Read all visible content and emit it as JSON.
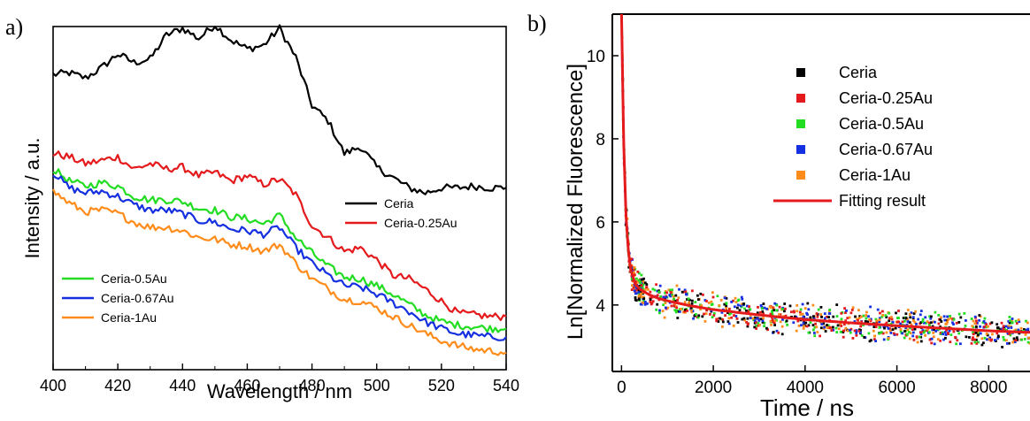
{
  "figure": {
    "panel_a_letter": "a)",
    "panel_b_letter": "b)"
  },
  "chart_data": [
    {
      "panel": "a)",
      "type": "line",
      "xlabel": "Wavelength / nm",
      "ylabel": "Intensity / a.u.",
      "xlim": [
        400,
        540
      ],
      "ylim": [
        0,
        10
      ],
      "x_ticks": [
        400,
        420,
        440,
        460,
        480,
        500,
        520,
        540
      ],
      "y_tick_labels": "none",
      "grid": false,
      "legend_groups": [
        {
          "location": "middle-right",
          "entries": [
            "Ceria",
            "Ceria-0.25Au"
          ]
        },
        {
          "location": "bottom-left",
          "entries": [
            "Ceria-0.5Au",
            "Ceria-0.67Au",
            "Ceria-1Au"
          ]
        }
      ],
      "x": [
        400,
        405,
        410,
        415,
        420,
        425,
        430,
        435,
        440,
        445,
        450,
        455,
        460,
        465,
        470,
        475,
        480,
        485,
        490,
        495,
        500,
        505,
        510,
        515,
        520,
        525,
        530,
        535,
        540
      ],
      "series": [
        {
          "name": "Ceria",
          "color": "#000000",
          "values": [
            8.6,
            8.65,
            8.5,
            8.8,
            9.2,
            8.95,
            9.05,
            9.75,
            9.95,
            9.65,
            10.05,
            9.6,
            9.35,
            9.45,
            9.95,
            9.1,
            7.7,
            7.25,
            6.3,
            6.5,
            5.9,
            5.6,
            5.3,
            5.15,
            5.3,
            5.3,
            5.35,
            5.3,
            5.3
          ]
        },
        {
          "name": "Ceria-0.25Au",
          "color": "#e41a1c",
          "values": [
            6.3,
            6.2,
            6.0,
            6.1,
            6.2,
            5.85,
            6.0,
            5.85,
            5.9,
            5.65,
            5.75,
            5.5,
            5.65,
            5.4,
            5.55,
            5.1,
            4.2,
            3.85,
            3.45,
            3.55,
            3.2,
            2.75,
            2.65,
            2.35,
            2.0,
            1.65,
            1.6,
            1.55,
            1.55
          ]
        },
        {
          "name": "Ceria-0.5Au",
          "color": "#22dd22",
          "values": [
            5.85,
            5.5,
            5.35,
            5.45,
            5.35,
            5.05,
            4.95,
            4.95,
            4.9,
            4.7,
            4.65,
            4.45,
            4.4,
            4.25,
            4.5,
            3.85,
            3.4,
            3.0,
            2.7,
            2.65,
            2.45,
            2.2,
            1.9,
            1.6,
            1.4,
            1.3,
            1.25,
            1.2,
            1.2
          ]
        },
        {
          "name": "Ceria-0.67Au",
          "color": "#1530e0",
          "values": [
            5.75,
            5.3,
            5.15,
            5.2,
            5.05,
            4.8,
            4.65,
            4.65,
            4.55,
            4.35,
            4.3,
            4.1,
            4.05,
            3.95,
            4.15,
            3.55,
            3.1,
            2.75,
            2.45,
            2.4,
            2.2,
            1.95,
            1.7,
            1.4,
            1.2,
            1.05,
            1.0,
            0.95,
            0.95
          ]
        },
        {
          "name": "Ceria-1Au",
          "color": "#ff8c1a",
          "values": [
            5.2,
            4.85,
            4.6,
            4.65,
            4.55,
            4.3,
            4.15,
            4.15,
            4.05,
            3.85,
            3.8,
            3.65,
            3.6,
            3.45,
            3.65,
            3.1,
            2.65,
            2.35,
            2.05,
            2.0,
            1.8,
            1.55,
            1.3,
            1.05,
            0.85,
            0.7,
            0.6,
            0.55,
            0.5
          ]
        }
      ]
    },
    {
      "panel": "b)",
      "type": "scatter",
      "xlabel": "Time / ns",
      "ylabel": "Ln[Normalized Fluorescence]",
      "xlim": [
        -200,
        8900
      ],
      "ylim": [
        2.4,
        11
      ],
      "x_ticks": [
        0,
        2000,
        4000,
        6000,
        8000
      ],
      "y_ticks": [
        4,
        6,
        8,
        10
      ],
      "grid": false,
      "legend": {
        "location": "top-right",
        "entries": [
          "Ceria",
          "Ceria-0.25Au",
          "Ceria-0.5Au",
          "Ceria-0.67Au",
          "Ceria-1Au",
          "Fitting result"
        ]
      },
      "series": [
        {
          "name": "Ceria",
          "color": "#000000"
        },
        {
          "name": "Ceria-0.25Au",
          "color": "#e41a1c"
        },
        {
          "name": "Ceria-0.5Au",
          "color": "#22dd22"
        },
        {
          "name": "Ceria-0.67Au",
          "color": "#1530e0"
        },
        {
          "name": "Ceria-1Au",
          "color": "#ff8c1a"
        }
      ],
      "fit": {
        "name": "Fitting result",
        "color": "#e41a1c",
        "x": [
          0,
          50,
          100,
          150,
          200,
          300,
          400,
          600,
          800,
          1000,
          1500,
          2000,
          3000,
          4000,
          5000,
          6000,
          7000,
          8000,
          8900
        ],
        "y": [
          11.0,
          7.8,
          6.1,
          5.3,
          4.85,
          4.5,
          4.38,
          4.25,
          4.16,
          4.1,
          3.98,
          3.89,
          3.76,
          3.65,
          3.57,
          3.5,
          3.44,
          3.38,
          3.34
        ]
      },
      "scatter_spread": 0.28
    }
  ]
}
